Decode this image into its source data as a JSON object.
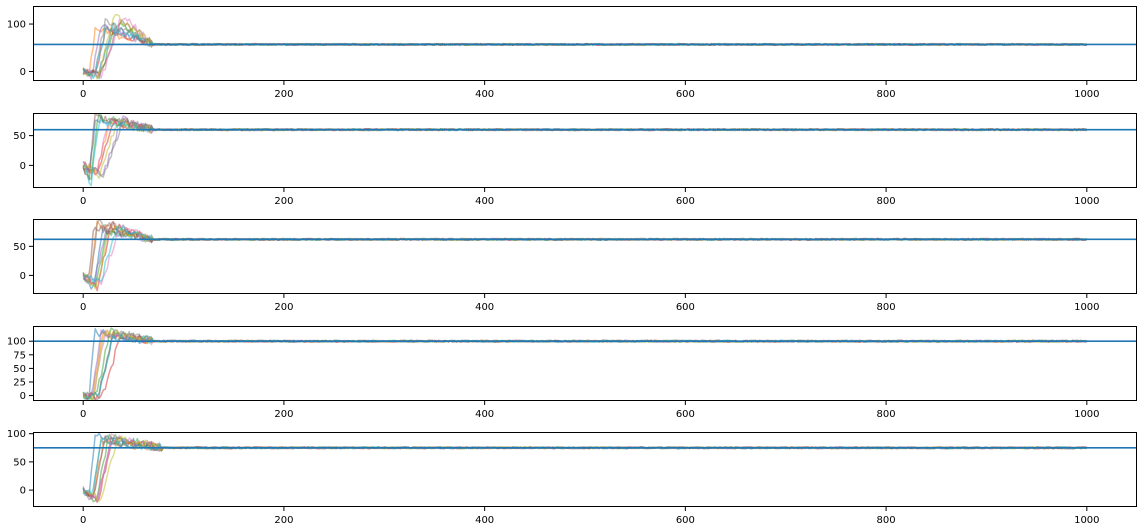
{
  "chart_data": [
    {
      "type": "line",
      "title": "",
      "xlabel": "",
      "ylabel": "",
      "xlim": [
        -50,
        1050
      ],
      "ylim": [
        -20,
        138
      ],
      "xticks": [
        0,
        200,
        400,
        600,
        800,
        1000
      ],
      "xtick_labels": [
        "0",
        "200",
        "400",
        "600",
        "800",
        "1000"
      ],
      "yticks": [
        0,
        100
      ],
      "ytick_labels": [
        "0",
        "100"
      ],
      "target": 57,
      "spike_max": 125,
      "spike_min": -10,
      "settle_x": 70,
      "n_series": 10,
      "series_colors": [
        "#1f77b4",
        "#ff7f0e",
        "#2ca02c",
        "#d62728",
        "#9467bd",
        "#8c564b",
        "#e377c2",
        "#7f7f7f",
        "#bcbd22",
        "#17becf"
      ],
      "target_color": "#1f77b4",
      "grid": false
    },
    {
      "type": "line",
      "title": "",
      "xlabel": "",
      "ylabel": "",
      "xlim": [
        -50,
        1050
      ],
      "ylim": [
        -38,
        88
      ],
      "xticks": [
        0,
        200,
        400,
        600,
        800,
        1000
      ],
      "xtick_labels": [
        "0",
        "200",
        "400",
        "600",
        "800",
        "1000"
      ],
      "yticks": [
        0,
        50
      ],
      "ytick_labels": [
        "0",
        "50"
      ],
      "target": 60,
      "spike_max": 85,
      "spike_min": -32,
      "settle_x": 70,
      "n_series": 10,
      "series_colors": [
        "#1f77b4",
        "#ff7f0e",
        "#2ca02c",
        "#d62728",
        "#9467bd",
        "#8c564b",
        "#e377c2",
        "#7f7f7f",
        "#bcbd22",
        "#17becf"
      ],
      "target_color": "#1f77b4",
      "grid": false
    },
    {
      "type": "line",
      "title": "",
      "xlabel": "",
      "ylabel": "",
      "xlim": [
        -50,
        1050
      ],
      "ylim": [
        -32,
        97
      ],
      "xticks": [
        0,
        200,
        400,
        600,
        800,
        1000
      ],
      "xtick_labels": [
        "0",
        "200",
        "400",
        "600",
        "800",
        "1000"
      ],
      "yticks": [
        0,
        50
      ],
      "ytick_labels": [
        "0",
        "50"
      ],
      "target": 62,
      "spike_max": 93,
      "spike_min": -22,
      "settle_x": 70,
      "n_series": 10,
      "series_colors": [
        "#1f77b4",
        "#ff7f0e",
        "#2ca02c",
        "#d62728",
        "#9467bd",
        "#8c564b",
        "#e377c2",
        "#7f7f7f",
        "#bcbd22",
        "#17becf"
      ],
      "target_color": "#1f77b4",
      "grid": false
    },
    {
      "type": "line",
      "title": "",
      "xlabel": "",
      "ylabel": "",
      "xlim": [
        -50,
        1050
      ],
      "ylim": [
        -10,
        128
      ],
      "xticks": [
        0,
        200,
        400,
        600,
        800,
        1000
      ],
      "xtick_labels": [
        "0",
        "200",
        "400",
        "600",
        "800",
        "1000"
      ],
      "yticks": [
        0,
        25,
        50,
        75,
        100
      ],
      "ytick_labels": [
        "0",
        "25",
        "50",
        "75",
        "100"
      ],
      "target": 100,
      "spike_max": 122,
      "spike_min": -3,
      "settle_x": 70,
      "n_series": 10,
      "series_colors": [
        "#1f77b4",
        "#ff7f0e",
        "#2ca02c",
        "#d62728",
        "#9467bd",
        "#8c564b",
        "#e377c2",
        "#7f7f7f",
        "#bcbd22",
        "#17becf"
      ],
      "target_color": "#1f77b4",
      "grid": false
    },
    {
      "type": "line",
      "title": "",
      "xlabel": "",
      "ylabel": "",
      "xlim": [
        -50,
        1050
      ],
      "ylim": [
        -30,
        103
      ],
      "xticks": [
        0,
        200,
        400,
        600,
        800,
        1000
      ],
      "xtick_labels": [
        "0",
        "200",
        "400",
        "600",
        "800",
        "1000"
      ],
      "yticks": [
        0,
        50,
        100
      ],
      "ytick_labels": [
        "0",
        "50",
        "100"
      ],
      "target": 75,
      "spike_max": 97,
      "spike_min": -25,
      "settle_x": 80,
      "n_series": 10,
      "series_colors": [
        "#1f77b4",
        "#ff7f0e",
        "#2ca02c",
        "#d62728",
        "#9467bd",
        "#8c564b",
        "#e377c2",
        "#7f7f7f",
        "#bcbd22",
        "#17becf"
      ],
      "target_color": "#1f77b4",
      "grid": false
    }
  ]
}
